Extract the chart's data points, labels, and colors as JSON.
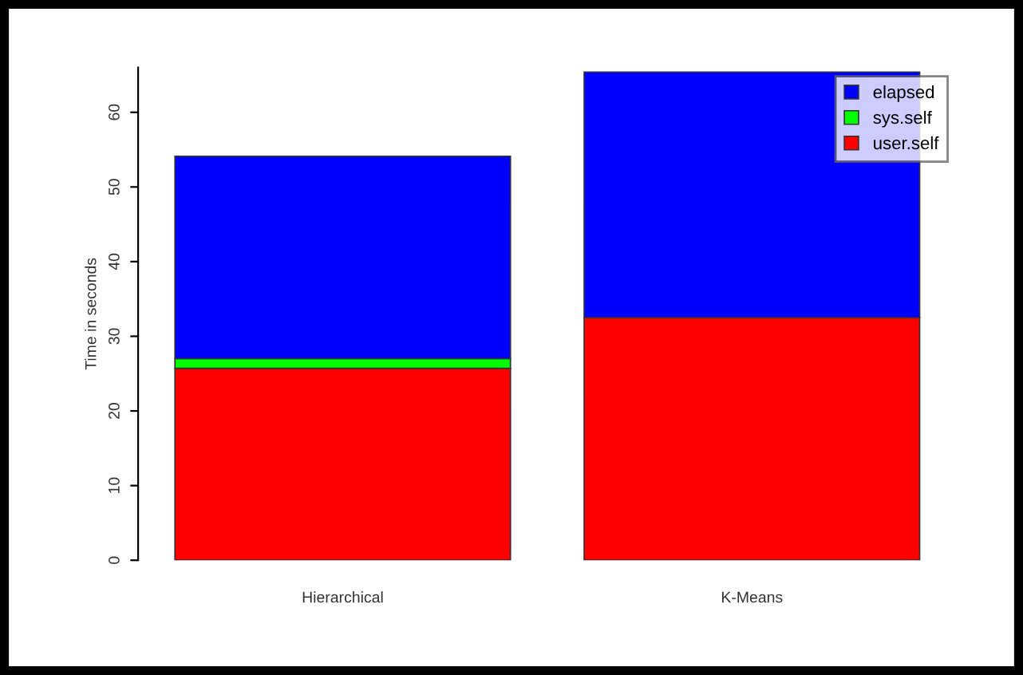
{
  "chart_data": {
    "type": "bar",
    "stacked": true,
    "ylabel": "Time in seconds",
    "categories": [
      "Hierarchical",
      "K-Means"
    ],
    "series": [
      {
        "name": "user.self",
        "color": "#ff0000",
        "values": [
          25.7,
          32.5
        ]
      },
      {
        "name": "sys.self",
        "color": "#00ff00",
        "values": [
          1.3,
          null
        ]
      },
      {
        "name": "elapsed",
        "color": "#0000ff",
        "values": [
          27.1,
          32.9
        ]
      }
    ],
    "ylim": [
      0,
      66
    ],
    "yticks": [
      0,
      10,
      20,
      30,
      40,
      50,
      60
    ],
    "grid": false,
    "legend": "top right"
  }
}
